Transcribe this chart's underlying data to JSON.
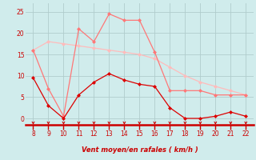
{
  "x": [
    8,
    9,
    10,
    11,
    12,
    13,
    14,
    15,
    16,
    17,
    18,
    19,
    20,
    21,
    22
  ],
  "line1": [
    16.0,
    18.0,
    17.5,
    17.0,
    16.5,
    16.0,
    15.5,
    15.0,
    14.0,
    12.0,
    10.0,
    8.5,
    7.5,
    6.5,
    5.5
  ],
  "line2": [
    16.0,
    7.0,
    0.5,
    21.0,
    18.0,
    24.5,
    23.0,
    23.0,
    15.5,
    6.5,
    6.5,
    6.5,
    5.5,
    5.5,
    5.5
  ],
  "line3": [
    9.5,
    3.0,
    0.0,
    5.5,
    8.5,
    10.5,
    9.0,
    8.0,
    7.5,
    2.5,
    0.0,
    0.0,
    0.5,
    1.5,
    0.5
  ],
  "color1": "#ffbbbb",
  "color2": "#ff7777",
  "color3": "#dd0000",
  "bg_color": "#d0ecec",
  "grid_color": "#b0cccc",
  "xlabel": "Vent moyen/en rafales ( km/h )",
  "xlim": [
    7.5,
    22.5
  ],
  "ylim": [
    -1.5,
    27
  ],
  "yticks": [
    0,
    5,
    10,
    15,
    20,
    25
  ],
  "xticks": [
    8,
    9,
    10,
    11,
    12,
    13,
    14,
    15,
    16,
    17,
    18,
    19,
    20,
    21,
    22
  ]
}
